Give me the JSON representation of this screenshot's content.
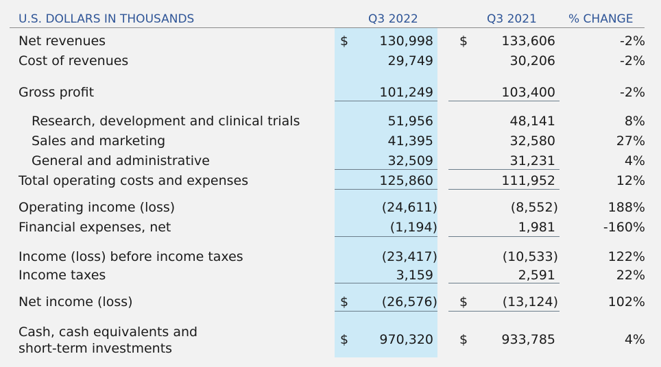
{
  "header": {
    "label": "U.S. DOLLARS IN THOUSANDS",
    "col1": "Q3 2022",
    "col2": "Q3 2021",
    "col3": "% CHANGE"
  },
  "currency_symbol": "$",
  "rows": [
    {
      "label": "Net revenues",
      "q3_2022": "130,998",
      "q3_2021": "133,606",
      "change": "-2%"
    },
    {
      "label": "Cost of revenues",
      "q3_2022": "29,749",
      "q3_2021": "30,206",
      "change": "-2%"
    },
    {
      "label": "Gross profit",
      "q3_2022": "101,249",
      "q3_2021": "103,400",
      "change": "-2%"
    },
    {
      "label": "Research, development and clinical trials",
      "q3_2022": "51,956",
      "q3_2021": "48,141",
      "change": "8%"
    },
    {
      "label": "Sales and marketing",
      "q3_2022": "41,395",
      "q3_2021": "32,580",
      "change": "27%"
    },
    {
      "label": "General and administrative",
      "q3_2022": "32,509",
      "q3_2021": "31,231",
      "change": "4%"
    },
    {
      "label": "Total operating costs and expenses",
      "q3_2022": "125,860",
      "q3_2021": "111,952",
      "change": "12%"
    },
    {
      "label": "Operating income (loss)",
      "q3_2022": "(24,611)",
      "q3_2021": "(8,552)",
      "change": "188%"
    },
    {
      "label": "Financial expenses, net",
      "q3_2022": "(1,194)",
      "q3_2021": "1,981",
      "change": "-160%"
    },
    {
      "label": "Income (loss) before income taxes",
      "q3_2022": "(23,417)",
      "q3_2021": "(10,533)",
      "change": "122%"
    },
    {
      "label": "Income taxes",
      "q3_2022": "3,159",
      "q3_2021": "2,591",
      "change": "22%"
    },
    {
      "label": "Net income (loss)",
      "q3_2022": "(26,576)",
      "q3_2021": "(13,124)",
      "change": "102%"
    },
    {
      "label_line1": "Cash, cash equivalents and",
      "label_line2": "short-term investments",
      "q3_2022": "970,320",
      "q3_2021": "933,785",
      "change": "4%"
    }
  ],
  "colors": {
    "header_text": "#2f5597",
    "highlight_column": "#cdeaf7",
    "background": "#f2f2f2"
  }
}
